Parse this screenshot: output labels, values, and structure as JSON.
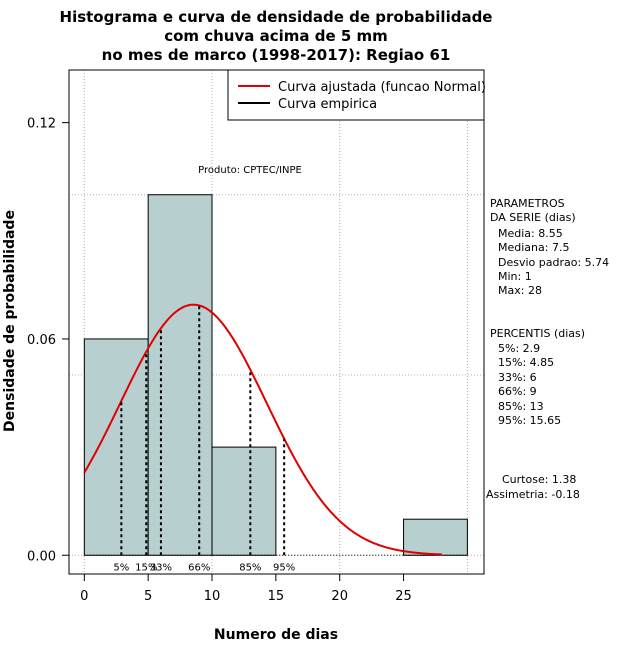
{
  "chart_data": {
    "type": "bar",
    "title_lines": [
      "Histograma e curva de densidade de probabilidade",
      "com chuva acima de 5 mm",
      "no mes de marco (1998-2017): Regiao 61"
    ],
    "xlabel": "Numero de dias",
    "ylabel": "Densidade de probabilidade",
    "xlim": [
      -1.2,
      31.3
    ],
    "ylim": [
      -0.0052,
      0.1346
    ],
    "x_ticks": [
      0,
      5,
      10,
      15,
      20,
      25
    ],
    "x_tick_labels": [
      "0",
      "5",
      "10",
      "15",
      "20",
      "25"
    ],
    "y_ticks": [
      0.0,
      0.06,
      0.12
    ],
    "y_tick_labels": [
      "0.00",
      "0.06",
      "0.12"
    ],
    "grid": true,
    "histogram": {
      "bins": [
        {
          "x0": 0,
          "x1": 5,
          "density": 0.06
        },
        {
          "x0": 5,
          "x1": 10,
          "density": 0.1
        },
        {
          "x0": 10,
          "x1": 15,
          "density": 0.03
        },
        {
          "x0": 15,
          "x1": 20,
          "density": 0.0
        },
        {
          "x0": 20,
          "x1": 25,
          "density": 0.0
        },
        {
          "x0": 25,
          "x1": 30,
          "density": 0.01
        }
      ],
      "fill": "#b7cfcf",
      "stroke": "#000000"
    },
    "normal_curve": {
      "mean": 8.55,
      "sd": 5.74,
      "x_from": 0,
      "x_to": 28,
      "color": "#e00000"
    },
    "percentile_lines": [
      {
        "label": "5%",
        "x": 2.9
      },
      {
        "label": "15%",
        "x": 4.85
      },
      {
        "label": "33%",
        "x": 6
      },
      {
        "label": "66%",
        "x": 9
      },
      {
        "label": "85%",
        "x": 13
      },
      {
        "label": "95%",
        "x": 15.65
      }
    ],
    "legend": {
      "position": "top-right",
      "entries": [
        {
          "label": "Curva ajustada (funcao Normal)",
          "color": "#e00000"
        },
        {
          "label": "Curva empirica",
          "color": "#000000"
        }
      ]
    },
    "product_label": "Produto: CPTEC/INPE",
    "side_panel": {
      "params_title_1": "PARAMETROS",
      "params_title_2": "DA SERIE (dias)",
      "params": [
        "Media: 8.55",
        "Mediana: 7.5",
        "Desvio padrao: 5.74",
        "Min: 1",
        "Max: 28"
      ],
      "percentis_title": "PERCENTIS (dias)",
      "percentis": [
        "5%: 2.9",
        "15%: 4.85",
        "33%: 6",
        "66%: 9",
        "85%: 13",
        "95%: 15.65"
      ],
      "curtose": "Curtose: 1.38",
      "assimetria": "Assimetria: -0.18"
    }
  }
}
